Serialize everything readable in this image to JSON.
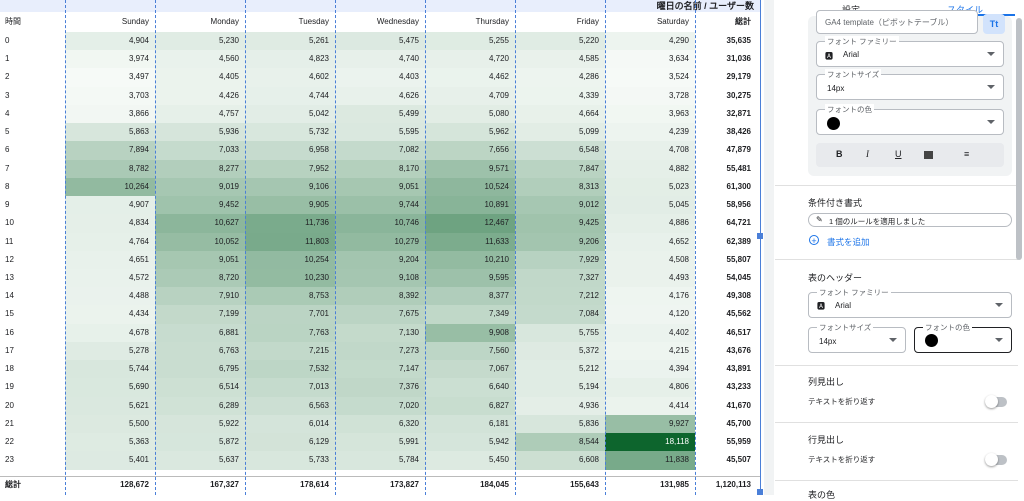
{
  "table": {
    "super_header": "曜日の名前 / ユーザー数",
    "columns": [
      "時間",
      "Sunday",
      "Monday",
      "Tuesday",
      "Wednesday",
      "Thursday",
      "Friday",
      "Saturday",
      "総計"
    ],
    "rows": [
      [
        "0",
        "4,904",
        "5,230",
        "5,261",
        "5,475",
        "5,255",
        "5,220",
        "4,290",
        "35,635"
      ],
      [
        "1",
        "3,974",
        "4,560",
        "4,823",
        "4,740",
        "4,720",
        "4,585",
        "3,634",
        "31,036"
      ],
      [
        "2",
        "3,497",
        "4,405",
        "4,602",
        "4,403",
        "4,462",
        "4,286",
        "3,524",
        "29,179"
      ],
      [
        "3",
        "3,703",
        "4,426",
        "4,744",
        "4,626",
        "4,709",
        "4,339",
        "3,728",
        "30,275"
      ],
      [
        "4",
        "3,866",
        "4,757",
        "5,042",
        "5,499",
        "5,080",
        "4,664",
        "3,963",
        "32,871"
      ],
      [
        "5",
        "5,863",
        "5,936",
        "5,732",
        "5,595",
        "5,962",
        "5,099",
        "4,239",
        "38,426"
      ],
      [
        "6",
        "7,894",
        "7,033",
        "6,958",
        "7,082",
        "7,656",
        "6,548",
        "4,708",
        "47,879"
      ],
      [
        "7",
        "8,782",
        "8,277",
        "7,952",
        "8,170",
        "9,571",
        "7,847",
        "4,882",
        "55,481"
      ],
      [
        "8",
        "10,264",
        "9,019",
        "9,106",
        "9,051",
        "10,524",
        "8,313",
        "5,023",
        "61,300"
      ],
      [
        "9",
        "4,907",
        "9,452",
        "9,905",
        "9,744",
        "10,891",
        "9,012",
        "5,045",
        "58,956"
      ],
      [
        "10",
        "4,834",
        "10,627",
        "11,736",
        "10,746",
        "12,467",
        "9,425",
        "4,886",
        "64,721"
      ],
      [
        "11",
        "4,764",
        "10,052",
        "11,803",
        "10,279",
        "11,633",
        "9,206",
        "4,652",
        "62,389"
      ],
      [
        "12",
        "4,651",
        "9,051",
        "10,254",
        "9,204",
        "10,210",
        "7,929",
        "4,508",
        "55,807"
      ],
      [
        "13",
        "4,572",
        "8,720",
        "10,230",
        "9,108",
        "9,595",
        "7,327",
        "4,493",
        "54,045"
      ],
      [
        "14",
        "4,488",
        "7,910",
        "8,753",
        "8,392",
        "8,377",
        "7,212",
        "4,176",
        "49,308"
      ],
      [
        "15",
        "4,434",
        "7,199",
        "7,701",
        "7,675",
        "7,349",
        "7,084",
        "4,120",
        "45,562"
      ],
      [
        "16",
        "4,678",
        "6,881",
        "7,763",
        "7,130",
        "9,908",
        "5,755",
        "4,402",
        "46,517"
      ],
      [
        "17",
        "5,278",
        "6,763",
        "7,215",
        "7,273",
        "7,560",
        "5,372",
        "4,215",
        "43,676"
      ],
      [
        "18",
        "5,744",
        "6,795",
        "7,532",
        "7,147",
        "7,067",
        "5,212",
        "4,394",
        "43,891"
      ],
      [
        "19",
        "5,690",
        "6,514",
        "7,013",
        "7,376",
        "6,640",
        "5,194",
        "4,806",
        "43,233"
      ],
      [
        "20",
        "5,621",
        "6,289",
        "6,563",
        "7,020",
        "6,827",
        "4,936",
        "4,414",
        "41,670"
      ],
      [
        "21",
        "5,500",
        "5,922",
        "6,014",
        "6,320",
        "6,181",
        "5,836",
        "9,927",
        "45,700"
      ],
      [
        "22",
        "5,363",
        "5,872",
        "6,129",
        "5,991",
        "5,942",
        "8,544",
        "18,118",
        "55,959"
      ],
      [
        "23",
        "5,401",
        "5,637",
        "5,733",
        "5,784",
        "5,450",
        "6,608",
        "11,838",
        "45,507"
      ]
    ],
    "footer": [
      "総計",
      "128,672",
      "167,327",
      "178,614",
      "173,827",
      "184,045",
      "155,643",
      "131,985",
      "1,120,113"
    ]
  },
  "panel": {
    "tabs": [
      "設定",
      "スタイル"
    ],
    "template_input": "GA4 template（ピボットテーブル）",
    "tt": "Tt",
    "font_family_label": "フォント ファミリー",
    "font_family": "Arial",
    "font_size_label": "フォントサイズ",
    "font_size": "14px",
    "font_color_label": "フォントの色",
    "conditional": {
      "title": "条件付き書式",
      "rule": "1 個のルールを適用しました",
      "add": "書式を追加"
    },
    "header": {
      "title": "表のヘッダー",
      "font_family_label": "フォント ファミリー",
      "font_family": "Arial",
      "font_size_label": "フォントサイズ",
      "font_size": "14px",
      "font_color_label": "フォントの色"
    },
    "column_headers": {
      "title": "列見出し",
      "wrap": "テキストを折り返す"
    },
    "row_headers": {
      "title": "行見出し",
      "wrap": "テキストを折り返す"
    },
    "table_colors": "表の色"
  }
}
